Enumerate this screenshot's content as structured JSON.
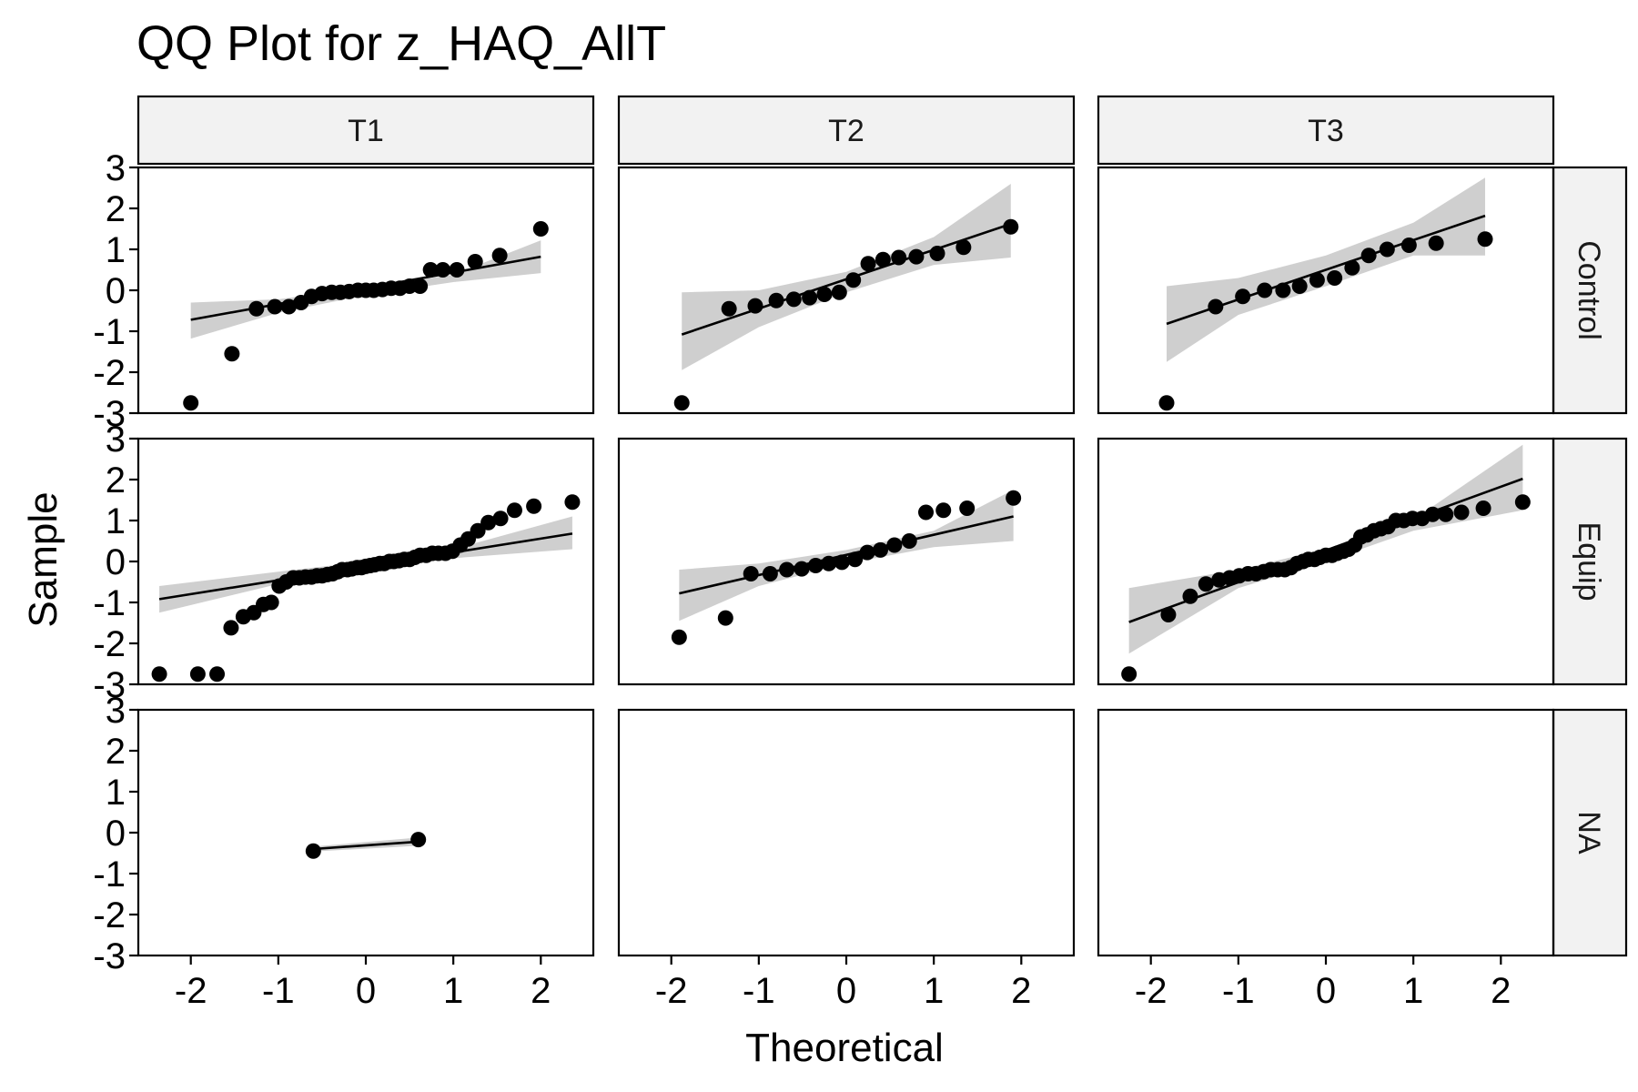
{
  "chart_data": {
    "type": "scatter",
    "kind": "faceted QQ plot with reference line and confidence band",
    "title": "QQ Plot for z_HAQ_AllT",
    "xlabel": "Theoretical",
    "ylabel": "Sample",
    "xlim": [
      -2.6,
      2.6
    ],
    "ylim": [
      -3,
      3
    ],
    "x_ticks": [
      -2,
      -1,
      0,
      1,
      2
    ],
    "y_ticks": [
      -3,
      -2,
      -1,
      0,
      1,
      2,
      3
    ],
    "x_tick_labels": [
      "-2",
      "-1",
      "0",
      "1",
      "2"
    ],
    "y_tick_labels": [
      "-3",
      "-2",
      "-1",
      "0",
      "1",
      "2",
      "3"
    ],
    "columns": [
      "T1",
      "T2",
      "T3"
    ],
    "rows": [
      "Control",
      "Equip",
      "NA"
    ],
    "grid": false,
    "band_color": "#cccccc",
    "strip_color": "#f2f2f2",
    "point_color": "#000000",
    "panels": [
      {
        "row": "Control",
        "col": "T1",
        "points": [
          [
            -2.0,
            -2.75
          ],
          [
            -1.53,
            -1.55
          ],
          [
            -1.25,
            -0.45
          ],
          [
            -1.04,
            -0.4
          ],
          [
            -0.88,
            -0.4
          ],
          [
            -0.74,
            -0.3
          ],
          [
            -0.62,
            -0.15
          ],
          [
            -0.5,
            -0.08
          ],
          [
            -0.39,
            -0.05
          ],
          [
            -0.29,
            -0.05
          ],
          [
            -0.19,
            -0.03
          ],
          [
            -0.09,
            0.0
          ],
          [
            0.0,
            0.0
          ],
          [
            0.09,
            0.0
          ],
          [
            0.19,
            0.02
          ],
          [
            0.29,
            0.05
          ],
          [
            0.39,
            0.05
          ],
          [
            0.5,
            0.1
          ],
          [
            0.62,
            0.1
          ],
          [
            0.74,
            0.5
          ],
          [
            0.88,
            0.5
          ],
          [
            1.04,
            0.5
          ],
          [
            1.25,
            0.7
          ],
          [
            1.53,
            0.85
          ],
          [
            2.0,
            1.5
          ]
        ],
        "line": [
          [
            -2.0,
            -0.72
          ],
          [
            2.0,
            0.82
          ]
        ],
        "band_upper": [
          [
            -2.0,
            -0.3
          ],
          [
            -1.0,
            -0.22
          ],
          [
            0.0,
            0.07
          ],
          [
            1.0,
            0.38
          ],
          [
            2.0,
            1.22
          ]
        ],
        "band_lower": [
          [
            -2.0,
            -1.18
          ],
          [
            -1.0,
            -0.55
          ],
          [
            0.0,
            -0.12
          ],
          [
            1.0,
            0.2
          ],
          [
            2.0,
            0.42
          ]
        ]
      },
      {
        "row": "Control",
        "col": "T2",
        "points": [
          [
            -1.88,
            -2.75
          ],
          [
            -1.34,
            -0.45
          ],
          [
            -1.04,
            -0.38
          ],
          [
            -0.8,
            -0.25
          ],
          [
            -0.6,
            -0.22
          ],
          [
            -0.42,
            -0.18
          ],
          [
            -0.25,
            -0.1
          ],
          [
            -0.08,
            -0.05
          ],
          [
            0.08,
            0.25
          ],
          [
            0.25,
            0.65
          ],
          [
            0.42,
            0.75
          ],
          [
            0.6,
            0.8
          ],
          [
            0.8,
            0.82
          ],
          [
            1.04,
            0.9
          ],
          [
            1.34,
            1.05
          ],
          [
            1.88,
            1.55
          ]
        ],
        "line": [
          [
            -1.88,
            -1.08
          ],
          [
            1.88,
            1.62
          ]
        ],
        "band_upper": [
          [
            -1.88,
            -0.05
          ],
          [
            -1.0,
            0.0
          ],
          [
            0.0,
            0.45
          ],
          [
            1.0,
            1.3
          ],
          [
            1.88,
            2.6
          ]
        ],
        "band_lower": [
          [
            -1.88,
            -1.95
          ],
          [
            -1.0,
            -0.9
          ],
          [
            0.0,
            -0.05
          ],
          [
            1.0,
            0.62
          ],
          [
            1.88,
            0.8
          ]
        ]
      },
      {
        "row": "Control",
        "col": "T3",
        "points": [
          [
            -1.82,
            -2.75
          ],
          [
            -1.26,
            -0.4
          ],
          [
            -0.95,
            -0.15
          ],
          [
            -0.7,
            0.0
          ],
          [
            -0.49,
            0.0
          ],
          [
            -0.3,
            0.1
          ],
          [
            -0.1,
            0.25
          ],
          [
            0.1,
            0.3
          ],
          [
            0.3,
            0.55
          ],
          [
            0.49,
            0.85
          ],
          [
            0.7,
            1.0
          ],
          [
            0.95,
            1.1
          ],
          [
            1.26,
            1.15
          ],
          [
            1.82,
            1.25
          ]
        ],
        "line": [
          [
            -1.82,
            -0.82
          ],
          [
            1.82,
            1.82
          ]
        ],
        "band_upper": [
          [
            -1.82,
            0.1
          ],
          [
            -1.0,
            0.3
          ],
          [
            0.0,
            0.85
          ],
          [
            1.0,
            1.65
          ],
          [
            1.82,
            2.75
          ]
        ],
        "band_lower": [
          [
            -1.82,
            -1.75
          ],
          [
            -1.0,
            -0.6
          ],
          [
            0.0,
            0.1
          ],
          [
            1.0,
            0.85
          ],
          [
            1.82,
            0.85
          ]
        ]
      },
      {
        "row": "Equip",
        "col": "T1",
        "points": [
          [
            -2.36,
            -2.75
          ],
          [
            -1.92,
            -2.75
          ],
          [
            -1.7,
            -2.75
          ],
          [
            -1.54,
            -1.62
          ],
          [
            -1.4,
            -1.35
          ],
          [
            -1.28,
            -1.25
          ],
          [
            -1.17,
            -1.05
          ],
          [
            -1.08,
            -1.0
          ],
          [
            -0.99,
            -0.6
          ],
          [
            -0.91,
            -0.5
          ],
          [
            -0.83,
            -0.4
          ],
          [
            -0.76,
            -0.4
          ],
          [
            -0.69,
            -0.38
          ],
          [
            -0.62,
            -0.38
          ],
          [
            -0.56,
            -0.35
          ],
          [
            -0.5,
            -0.35
          ],
          [
            -0.44,
            -0.32
          ],
          [
            -0.38,
            -0.3
          ],
          [
            -0.32,
            -0.25
          ],
          [
            -0.27,
            -0.2
          ],
          [
            -0.21,
            -0.2
          ],
          [
            -0.16,
            -0.18
          ],
          [
            -0.1,
            -0.15
          ],
          [
            -0.05,
            -0.15
          ],
          [
            0.0,
            -0.12
          ],
          [
            0.05,
            -0.1
          ],
          [
            0.1,
            -0.08
          ],
          [
            0.16,
            -0.05
          ],
          [
            0.21,
            -0.05
          ],
          [
            0.27,
            0.0
          ],
          [
            0.32,
            0.0
          ],
          [
            0.38,
            0.02
          ],
          [
            0.44,
            0.05
          ],
          [
            0.5,
            0.05
          ],
          [
            0.56,
            0.1
          ],
          [
            0.62,
            0.15
          ],
          [
            0.69,
            0.15
          ],
          [
            0.76,
            0.2
          ],
          [
            0.83,
            0.2
          ],
          [
            0.91,
            0.2
          ],
          [
            0.99,
            0.25
          ],
          [
            1.08,
            0.4
          ],
          [
            1.17,
            0.55
          ],
          [
            1.28,
            0.75
          ],
          [
            1.4,
            0.95
          ],
          [
            1.54,
            1.05
          ],
          [
            1.7,
            1.25
          ],
          [
            1.92,
            1.35
          ],
          [
            2.36,
            1.45
          ]
        ],
        "line": [
          [
            -2.36,
            -0.92
          ],
          [
            2.36,
            0.68
          ]
        ],
        "band_upper": [
          [
            -2.36,
            -0.6
          ],
          [
            -1.0,
            -0.25
          ],
          [
            0.0,
            0.0
          ],
          [
            1.0,
            0.3
          ],
          [
            2.36,
            1.1
          ]
        ],
        "band_lower": [
          [
            -2.36,
            -1.25
          ],
          [
            -1.0,
            -0.55
          ],
          [
            0.0,
            -0.22
          ],
          [
            1.0,
            0.08
          ],
          [
            2.36,
            0.3
          ]
        ]
      },
      {
        "row": "Equip",
        "col": "T2",
        "points": [
          [
            -1.91,
            -1.85
          ],
          [
            -1.38,
            -1.38
          ],
          [
            -1.09,
            -0.3
          ],
          [
            -0.87,
            -0.3
          ],
          [
            -0.68,
            -0.2
          ],
          [
            -0.51,
            -0.18
          ],
          [
            -0.35,
            -0.1
          ],
          [
            -0.2,
            -0.05
          ],
          [
            -0.05,
            -0.02
          ],
          [
            0.1,
            0.05
          ],
          [
            0.24,
            0.22
          ],
          [
            0.39,
            0.28
          ],
          [
            0.55,
            0.4
          ],
          [
            0.72,
            0.5
          ],
          [
            0.91,
            1.2
          ],
          [
            1.11,
            1.25
          ],
          [
            1.38,
            1.3
          ],
          [
            1.91,
            1.55
          ]
        ],
        "line": [
          [
            -1.91,
            -0.78
          ],
          [
            1.91,
            1.1
          ]
        ],
        "band_upper": [
          [
            -1.91,
            -0.2
          ],
          [
            -1.0,
            -0.05
          ],
          [
            0.0,
            0.28
          ],
          [
            1.0,
            0.75
          ],
          [
            1.91,
            1.75
          ]
        ],
        "band_lower": [
          [
            -1.91,
            -1.45
          ],
          [
            -1.0,
            -0.6
          ],
          [
            0.0,
            -0.05
          ],
          [
            1.0,
            0.35
          ],
          [
            1.91,
            0.5
          ]
        ]
      },
      {
        "row": "Equip",
        "col": "T3",
        "points": [
          [
            -2.25,
            -2.75
          ],
          [
            -1.8,
            -1.3
          ],
          [
            -1.55,
            -0.85
          ],
          [
            -1.37,
            -0.55
          ],
          [
            -1.22,
            -0.45
          ],
          [
            -1.1,
            -0.4
          ],
          [
            -0.99,
            -0.35
          ],
          [
            -0.89,
            -0.3
          ],
          [
            -0.8,
            -0.3
          ],
          [
            -0.71,
            -0.25
          ],
          [
            -0.63,
            -0.2
          ],
          [
            -0.55,
            -0.2
          ],
          [
            -0.47,
            -0.2
          ],
          [
            -0.4,
            -0.15
          ],
          [
            -0.33,
            -0.05
          ],
          [
            -0.26,
            0.0
          ],
          [
            -0.2,
            0.05
          ],
          [
            -0.13,
            0.05
          ],
          [
            -0.07,
            0.1
          ],
          [
            0.0,
            0.15
          ],
          [
            0.07,
            0.15
          ],
          [
            0.13,
            0.2
          ],
          [
            0.2,
            0.25
          ],
          [
            0.26,
            0.3
          ],
          [
            0.33,
            0.4
          ],
          [
            0.4,
            0.6
          ],
          [
            0.47,
            0.65
          ],
          [
            0.55,
            0.75
          ],
          [
            0.63,
            0.8
          ],
          [
            0.71,
            0.85
          ],
          [
            0.8,
            1.0
          ],
          [
            0.89,
            1.0
          ],
          [
            0.99,
            1.05
          ],
          [
            1.1,
            1.05
          ],
          [
            1.22,
            1.15
          ],
          [
            1.37,
            1.15
          ],
          [
            1.55,
            1.2
          ],
          [
            1.8,
            1.3
          ],
          [
            2.25,
            1.45
          ]
        ],
        "line": [
          [
            -2.25,
            -1.48
          ],
          [
            2.25,
            2.02
          ]
        ],
        "band_upper": [
          [
            -2.25,
            -0.65
          ],
          [
            -1.0,
            -0.2
          ],
          [
            0.0,
            0.3
          ],
          [
            1.0,
            1.02
          ],
          [
            2.25,
            2.85
          ]
        ],
        "band_lower": [
          [
            -2.25,
            -2.25
          ],
          [
            -1.0,
            -0.65
          ],
          [
            0.0,
            0.0
          ],
          [
            1.0,
            0.75
          ],
          [
            2.25,
            1.25
          ]
        ]
      },
      {
        "row": "NA",
        "col": "T1",
        "points": [
          [
            -0.6,
            -0.45
          ],
          [
            0.6,
            -0.17
          ]
        ],
        "line": [
          [
            -0.6,
            -0.4
          ],
          [
            0.6,
            -0.22
          ]
        ],
        "band_upper": [
          [
            -0.6,
            -0.34
          ],
          [
            0.6,
            -0.12
          ]
        ],
        "band_lower": [
          [
            -0.6,
            -0.46
          ],
          [
            0.6,
            -0.32
          ]
        ]
      },
      {
        "row": "NA",
        "col": "T2",
        "points": [],
        "line": [],
        "band_upper": [],
        "band_lower": []
      },
      {
        "row": "NA",
        "col": "T3",
        "points": [],
        "line": [],
        "band_upper": [],
        "band_lower": []
      }
    ]
  }
}
